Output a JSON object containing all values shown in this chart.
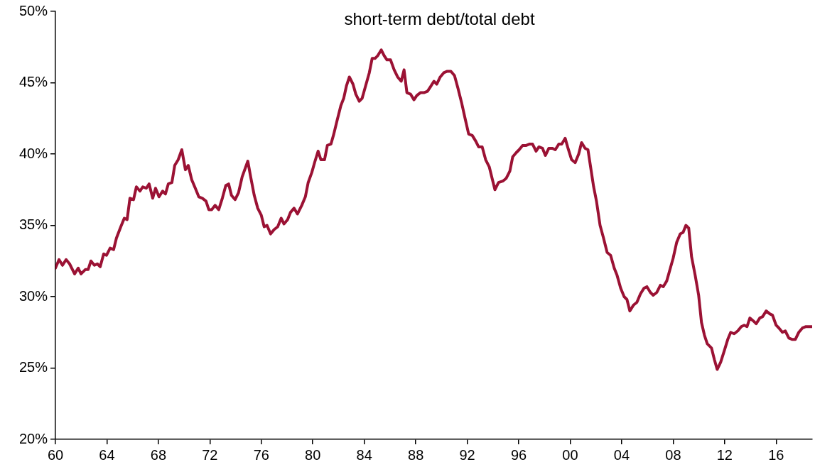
{
  "chart_data": {
    "type": "line",
    "title": "short-term debt/total debt",
    "color": "#9b1234",
    "legend": false,
    "grid": false,
    "marker": "none",
    "line_style": "solid",
    "xlim": [
      1960,
      2018.8
    ],
    "ylim": [
      20,
      50
    ],
    "xticks": [
      {
        "value": 1960,
        "label": "60"
      },
      {
        "value": 1964,
        "label": "64"
      },
      {
        "value": 1968,
        "label": "68"
      },
      {
        "value": 1972,
        "label": "72"
      },
      {
        "value": 1976,
        "label": "76"
      },
      {
        "value": 1980,
        "label": "80"
      },
      {
        "value": 1984,
        "label": "84"
      },
      {
        "value": 1988,
        "label": "88"
      },
      {
        "value": 1992,
        "label": "92"
      },
      {
        "value": 1996,
        "label": "96"
      },
      {
        "value": 2000,
        "label": "00"
      },
      {
        "value": 2004,
        "label": "04"
      },
      {
        "value": 2008,
        "label": "08"
      },
      {
        "value": 2012,
        "label": "12"
      },
      {
        "value": 2016,
        "label": "16"
      }
    ],
    "yticks": [
      {
        "value": 20,
        "label": "20%"
      },
      {
        "value": 25,
        "label": "25%"
      },
      {
        "value": 30,
        "label": "30%"
      },
      {
        "value": 35,
        "label": "35%"
      },
      {
        "value": 40,
        "label": "40%"
      },
      {
        "value": 45,
        "label": "45%"
      },
      {
        "value": 50,
        "label": "50%"
      }
    ],
    "x": [
      1960.0,
      1960.28,
      1960.55,
      1960.83,
      1961.1,
      1961.49,
      1961.77,
      1961.99,
      1962.32,
      1962.54,
      1962.76,
      1963.03,
      1963.26,
      1963.48,
      1963.75,
      1963.97,
      1964.25,
      1964.52,
      1964.74,
      1965.08,
      1965.35,
      1965.57,
      1965.79,
      1966.07,
      1966.29,
      1966.57,
      1966.79,
      1967.06,
      1967.28,
      1967.56,
      1967.78,
      1968.05,
      1968.33,
      1968.55,
      1968.77,
      1969.05,
      1969.27,
      1969.54,
      1969.82,
      1970.1,
      1970.32,
      1970.59,
      1970.87,
      1971.14,
      1971.42,
      1971.7,
      1971.92,
      1972.14,
      1972.41,
      1972.69,
      1972.97,
      1973.24,
      1973.46,
      1973.68,
      1973.96,
      1974.23,
      1974.51,
      1974.95,
      1975.17,
      1975.45,
      1975.72,
      1976.0,
      1976.22,
      1976.44,
      1976.72,
      1976.99,
      1977.27,
      1977.54,
      1977.76,
      1978.04,
      1978.26,
      1978.54,
      1978.81,
      1979.14,
      1979.42,
      1979.64,
      1979.92,
      1980.14,
      1980.41,
      1980.63,
      1980.91,
      1981.13,
      1981.41,
      1981.63,
      1981.9,
      1982.18,
      1982.4,
      1982.62,
      1982.84,
      1983.12,
      1983.34,
      1983.61,
      1983.83,
      1984.11,
      1984.39,
      1984.61,
      1984.83,
      1985.05,
      1985.32,
      1985.54,
      1985.76,
      1986.04,
      1986.32,
      1986.59,
      1986.87,
      1987.09,
      1987.31,
      1987.59,
      1987.86,
      1988.08,
      1988.36,
      1988.63,
      1988.91,
      1989.13,
      1989.41,
      1989.63,
      1989.9,
      1990.18,
      1990.45,
      1990.73,
      1991.01,
      1991.28,
      1991.56,
      1991.83,
      1992.11,
      1992.39,
      1992.66,
      1992.88,
      1993.16,
      1993.43,
      1993.71,
      1993.93,
      1994.15,
      1994.43,
      1994.76,
      1995.03,
      1995.31,
      1995.53,
      1995.81,
      1996.03,
      1996.3,
      1996.58,
      1996.86,
      1997.07,
      1997.35,
      1997.57,
      1997.85,
      1998.07,
      1998.34,
      1998.62,
      1998.84,
      1999.12,
      1999.34,
      1999.61,
      1999.83,
      2000.11,
      2000.39,
      2000.66,
      2000.88,
      2001.16,
      2001.38,
      2001.6,
      2001.82,
      2002.04,
      2002.32,
      2002.59,
      2002.87,
      2003.14,
      2003.42,
      2003.64,
      2003.92,
      2004.19,
      2004.41,
      2004.63,
      2004.91,
      2005.18,
      2005.46,
      2005.74,
      2005.96,
      2006.23,
      2006.45,
      2006.73,
      2007.01,
      2007.23,
      2007.5,
      2007.72,
      2008.0,
      2008.27,
      2008.55,
      2008.77,
      2008.99,
      2009.21,
      2009.43,
      2009.71,
      2009.98,
      2010.2,
      2010.43,
      2010.65,
      2010.98,
      2011.2,
      2011.42,
      2011.69,
      2011.97,
      2012.24,
      2012.47,
      2012.74,
      2013.02,
      2013.29,
      2013.52,
      2013.74,
      2013.96,
      2014.23,
      2014.45,
      2014.73,
      2014.95,
      2015.23,
      2015.5,
      2015.72,
      2016.0,
      2016.22,
      2016.49,
      2016.71,
      2016.99,
      2017.27,
      2017.49,
      2017.76,
      2018.04,
      2018.32,
      2018.76
    ],
    "values": [
      32.0,
      32.6,
      32.2,
      32.6,
      32.3,
      31.6,
      32.0,
      31.6,
      31.9,
      31.9,
      32.5,
      32.2,
      32.3,
      32.1,
      33.0,
      32.9,
      33.4,
      33.3,
      34.1,
      34.9,
      35.5,
      35.4,
      36.9,
      36.8,
      37.7,
      37.4,
      37.7,
      37.6,
      37.9,
      36.9,
      37.6,
      37.0,
      37.4,
      37.2,
      37.9,
      38.0,
      39.2,
      39.6,
      40.3,
      38.9,
      39.2,
      38.2,
      37.6,
      37.0,
      36.9,
      36.7,
      36.1,
      36.1,
      36.4,
      36.1,
      36.9,
      37.8,
      37.9,
      37.1,
      36.8,
      37.3,
      38.4,
      39.5,
      38.4,
      37.1,
      36.2,
      35.7,
      34.9,
      35.0,
      34.4,
      34.7,
      34.9,
      35.5,
      35.1,
      35.4,
      35.9,
      36.2,
      35.8,
      36.4,
      37.0,
      38.0,
      38.7,
      39.4,
      40.2,
      39.6,
      39.6,
      40.6,
      40.7,
      41.4,
      42.4,
      43.4,
      43.9,
      44.8,
      45.4,
      44.9,
      44.2,
      43.7,
      43.9,
      44.8,
      45.7,
      46.7,
      46.7,
      46.9,
      47.3,
      46.9,
      46.6,
      46.6,
      45.9,
      45.4,
      45.1,
      45.9,
      44.3,
      44.2,
      43.8,
      44.1,
      44.3,
      44.3,
      44.4,
      44.7,
      45.1,
      44.9,
      45.4,
      45.7,
      45.8,
      45.8,
      45.5,
      44.6,
      43.6,
      42.5,
      41.4,
      41.3,
      40.9,
      40.5,
      40.5,
      39.6,
      39.1,
      38.3,
      37.5,
      38.0,
      38.1,
      38.3,
      38.8,
      39.8,
      40.1,
      40.3,
      40.6,
      40.6,
      40.7,
      40.7,
      40.2,
      40.5,
      40.4,
      39.9,
      40.4,
      40.4,
      40.3,
      40.7,
      40.7,
      41.1,
      40.4,
      39.6,
      39.4,
      40.0,
      40.8,
      40.4,
      40.3,
      39.0,
      37.7,
      36.7,
      35.0,
      34.1,
      33.1,
      32.9,
      32.0,
      31.5,
      30.6,
      30.0,
      29.8,
      29.0,
      29.4,
      29.6,
      30.2,
      30.6,
      30.7,
      30.3,
      30.1,
      30.3,
      30.8,
      30.7,
      31.1,
      31.8,
      32.7,
      33.8,
      34.4,
      34.5,
      35.0,
      34.8,
      32.8,
      31.5,
      30.1,
      28.2,
      27.3,
      26.7,
      26.4,
      25.6,
      24.9,
      25.4,
      26.2,
      27.0,
      27.5,
      27.4,
      27.6,
      27.9,
      28.0,
      27.9,
      28.5,
      28.3,
      28.1,
      28.5,
      28.6,
      29.0,
      28.8,
      28.7,
      28.0,
      27.8,
      27.5,
      27.6,
      27.1,
      27.0,
      27.0,
      27.5,
      27.8,
      27.9,
      27.9
    ]
  }
}
